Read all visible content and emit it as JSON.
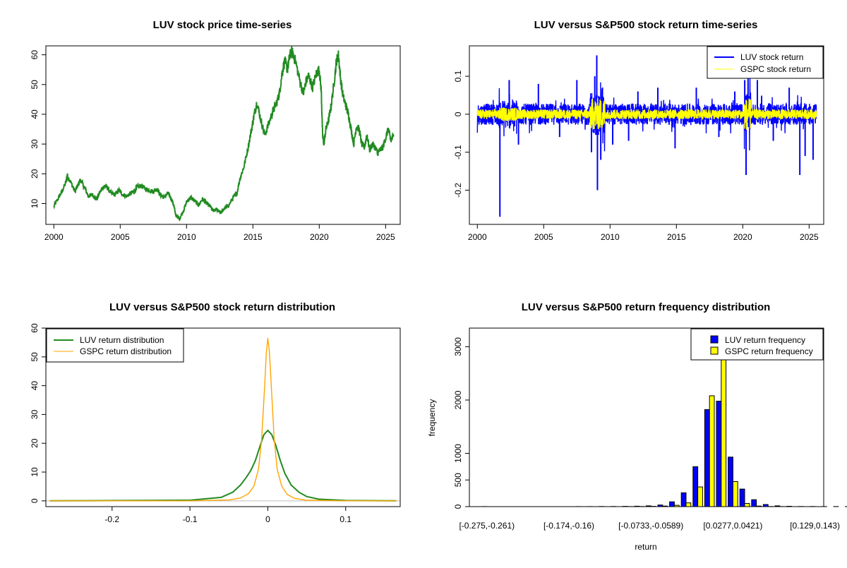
{
  "colors": {
    "luv_price": "#228B22",
    "luv_return": "#0000FF",
    "gspc_return": "#FFFF00",
    "luv_density": "#228B22",
    "gspc_density": "#FFA500",
    "luv_bar": "#0000FF",
    "gspc_bar": "#FFFF00",
    "zero_line": "#BEBEBE"
  },
  "chart_data": [
    {
      "type": "line",
      "title": "LUV stock price time-series",
      "xlim": [
        1999.4,
        2026.1
      ],
      "ylim": [
        3,
        63
      ],
      "xticks": [
        2000,
        2005,
        2010,
        2015,
        2020,
        2025
      ],
      "yticks": [
        10,
        20,
        30,
        40,
        50,
        60
      ],
      "series": [
        {
          "x": [
            2000.0,
            2000.3,
            2000.6,
            2000.9,
            2001.0,
            2001.3,
            2001.6,
            2001.8,
            2002.0,
            2002.3,
            2002.6,
            2002.9,
            2003.2,
            2003.5,
            2003.8,
            2004.0,
            2004.3,
            2004.6,
            2004.9,
            2005.2,
            2005.5,
            2005.8,
            2006.0,
            2006.3,
            2006.6,
            2006.9,
            2007.2,
            2007.5,
            2007.8,
            2008.0,
            2008.3,
            2008.6,
            2008.8,
            2009.0,
            2009.2,
            2009.5,
            2009.8,
            2010.0,
            2010.3,
            2010.6,
            2010.9,
            2011.2,
            2011.5,
            2011.8,
            2012.0,
            2012.3,
            2012.6,
            2012.9,
            2013.2,
            2013.5,
            2013.8,
            2014.0,
            2014.3,
            2014.6,
            2014.9,
            2015.1,
            2015.3,
            2015.6,
            2015.9,
            2016.2,
            2016.5,
            2016.8,
            2017.0,
            2017.2,
            2017.4,
            2017.6,
            2017.8,
            2017.95,
            2018.2,
            2018.5,
            2018.8,
            2019.0,
            2019.2,
            2019.5,
            2019.8,
            2020.0,
            2020.15,
            2020.25,
            2020.35,
            2020.5,
            2020.7,
            2020.9,
            2021.1,
            2021.3,
            2021.45,
            2021.6,
            2021.8,
            2022.0,
            2022.2,
            2022.4,
            2022.6,
            2022.8,
            2023.0,
            2023.2,
            2023.4,
            2023.6,
            2023.8,
            2024.0,
            2024.2,
            2024.4,
            2024.6,
            2024.8,
            2025.0,
            2025.2,
            2025.4,
            2025.6
          ],
          "y": [
            9.0,
            11.5,
            14.0,
            17.0,
            19.5,
            17.0,
            14.0,
            16.0,
            18.0,
            15.5,
            12.5,
            13.0,
            11.5,
            14.0,
            16.0,
            15.5,
            13.5,
            13.0,
            14.5,
            13.0,
            12.5,
            13.5,
            14.0,
            15.5,
            16.0,
            15.0,
            14.5,
            14.0,
            15.0,
            13.0,
            12.0,
            13.5,
            12.0,
            10.0,
            6.0,
            5.0,
            8.0,
            10.5,
            12.0,
            11.0,
            9.5,
            11.5,
            10.0,
            9.0,
            7.5,
            8.0,
            7.0,
            8.5,
            9.5,
            12.0,
            13.5,
            18.0,
            22.0,
            28.0,
            35.0,
            40.0,
            44.0,
            38.0,
            33.0,
            37.0,
            41.0,
            44.0,
            47.0,
            54.0,
            58.0,
            55.0,
            60.0,
            61.0,
            58.0,
            52.0,
            47.0,
            51.0,
            53.0,
            49.0,
            54.0,
            55.0,
            48.0,
            33.0,
            30.0,
            35.0,
            38.0,
            43.0,
            50.0,
            58.0,
            60.0,
            52.0,
            46.0,
            43.0,
            40.0,
            35.0,
            30.0,
            36.0,
            35.0,
            30.0,
            29.0,
            33.0,
            28.0,
            30.0,
            29.0,
            27.0,
            28.0,
            29.0,
            32.0,
            35.0,
            31.0,
            33.0
          ]
        }
      ]
    },
    {
      "type": "line",
      "title": "LUV versus S&P500 stock return time-series",
      "xlim": [
        1999.4,
        2026.1
      ],
      "ylim": [
        -0.29,
        0.18
      ],
      "xticks": [
        2000,
        2005,
        2010,
        2015,
        2020,
        2025
      ],
      "yticks": [
        -0.2,
        -0.1,
        0.0,
        0.1
      ],
      "legend_position": "top-right",
      "series": [
        {
          "name": "LUV stock return",
          "spikes_x": [
            2001.7,
            2002.4,
            2003.1,
            2004.6,
            2006.2,
            2007.5,
            2008.6,
            2008.85,
            2009.0,
            2009.05,
            2009.3,
            2010.2,
            2011.4,
            2012.1,
            2013.6,
            2014.9,
            2016.5,
            2018.2,
            2019.4,
            2020.15,
            2020.25,
            2020.4,
            2021.1,
            2022.3,
            2023.5,
            2024.3,
            2024.7,
            2025.3
          ],
          "spikes_y": [
            -0.27,
            0.09,
            -0.08,
            0.08,
            -0.06,
            0.09,
            -0.1,
            0.1,
            0.155,
            -0.2,
            -0.12,
            -0.08,
            -0.07,
            0.06,
            0.07,
            -0.09,
            0.07,
            -0.06,
            0.06,
            0.09,
            -0.16,
            0.12,
            0.09,
            -0.07,
            0.07,
            -0.16,
            -0.11,
            -0.12
          ]
        },
        {
          "name": "GSPC stock return"
        }
      ]
    },
    {
      "type": "line",
      "title": "LUV versus S&P500 stock return distribution",
      "xlim": [
        -0.285,
        0.17
      ],
      "ylim": [
        -2,
        60
      ],
      "xticks": [
        -0.2,
        -0.1,
        0.0,
        0.1
      ],
      "yticks": [
        0,
        10,
        20,
        30,
        40,
        50,
        60
      ],
      "legend_position": "top-left",
      "series": [
        {
          "name": "LUV return distribution",
          "x": [
            -0.28,
            -0.1,
            -0.06,
            -0.045,
            -0.035,
            -0.028,
            -0.022,
            -0.016,
            -0.01,
            -0.005,
            0.0,
            0.005,
            0.01,
            0.016,
            0.022,
            0.03,
            0.04,
            0.05,
            0.065,
            0.1,
            0.165
          ],
          "y": [
            0,
            0.2,
            1.2,
            3.0,
            5.5,
            8.0,
            10.5,
            14.0,
            19.0,
            23.0,
            24.5,
            23.0,
            19.5,
            14.0,
            9.5,
            5.5,
            3.0,
            1.5,
            0.6,
            0.1,
            0
          ]
        },
        {
          "name": "GSPC return distribution",
          "x": [
            -0.28,
            -0.1,
            -0.05,
            -0.035,
            -0.025,
            -0.018,
            -0.012,
            -0.008,
            -0.004,
            -0.002,
            0.0,
            0.002,
            0.004,
            0.008,
            0.012,
            0.018,
            0.025,
            0.035,
            0.05,
            0.1,
            0.165
          ],
          "y": [
            0,
            0.0,
            0.3,
            1.0,
            2.5,
            5.0,
            11.0,
            21.0,
            40.0,
            51.0,
            56.5,
            52.0,
            42.0,
            22.0,
            11.0,
            5.0,
            2.2,
            0.8,
            0.2,
            0.0,
            0
          ]
        }
      ]
    },
    {
      "type": "bar",
      "title": "LUV versus S&P500 return frequency distribution",
      "xlabel": "return",
      "ylabel": "frequency",
      "ylim": [
        0,
        3350
      ],
      "yticks": [
        0,
        500,
        1000,
        2000,
        3000
      ],
      "legend_position": "top-right",
      "tick_labels": [
        "[-0.275,-0.261)",
        "[-0.174,-0.16)",
        "[-0.0733,-0.0589)",
        "[0.0277,0.0421)",
        "[0.129,0.143)"
      ],
      "tick_label_bins": [
        0,
        7,
        14,
        21,
        28
      ],
      "series": [
        {
          "name": "LUV return frequency",
          "values": [
            1,
            0,
            0,
            0,
            0,
            0,
            0,
            0,
            1,
            1,
            2,
            3,
            5,
            8,
            14,
            30,
            90,
            260,
            750,
            1820,
            1980,
            930,
            330,
            130,
            40,
            15,
            7,
            3,
            2,
            1,
            1,
            1
          ]
        },
        {
          "name": "GSPC return frequency",
          "values": [
            0,
            0,
            0,
            0,
            0,
            0,
            0,
            0,
            0,
            0,
            0,
            0,
            1,
            2,
            5,
            10,
            25,
            70,
            370,
            2080,
            3350,
            470,
            60,
            10,
            3,
            1,
            0,
            0,
            0,
            0,
            0,
            0
          ]
        }
      ]
    }
  ]
}
